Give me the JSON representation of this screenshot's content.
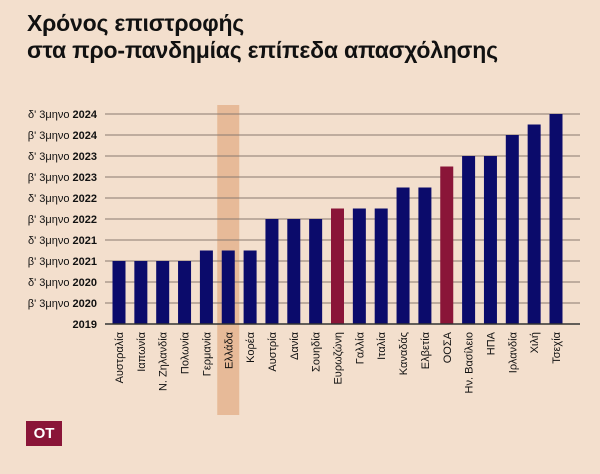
{
  "header": {
    "title_line1": "Χρόνος επιστροφής",
    "title_line2": "στα προ-πανδημίας επίπεδα απασχόλησης"
  },
  "logo": {
    "text": "OT"
  },
  "colors": {
    "bar": "#0b0b6b",
    "highlight_bar": "#8a1538",
    "highlight_band": "#e4b48e",
    "background": "#f3dfcd",
    "grid": "#8a7a70"
  },
  "chart_data": {
    "type": "bar",
    "title": "Χρόνος επιστροφής στα προ-πανδημίας επίπεδα απασχόλησης",
    "xlabel": "",
    "ylabel": "",
    "y_ticks": [
      {
        "prefix": "",
        "year": "2019"
      },
      {
        "prefix": "β' 3μηνο ",
        "year": "2020"
      },
      {
        "prefix": "δ' 3μηνο ",
        "year": "2020"
      },
      {
        "prefix": "β' 3μηνο ",
        "year": "2021"
      },
      {
        "prefix": "δ' 3μηνο ",
        "year": "2021"
      },
      {
        "prefix": "β' 3μηνο ",
        "year": "2022"
      },
      {
        "prefix": "δ' 3μηνο ",
        "year": "2022"
      },
      {
        "prefix": "β' 3μηνο ",
        "year": "2023"
      },
      {
        "prefix": "δ' 3μηνο ",
        "year": "2023"
      },
      {
        "prefix": "β' 3μηνο ",
        "year": "2024"
      },
      {
        "prefix": "δ' 3μηνο ",
        "year": "2024"
      }
    ],
    "ylim": [
      0,
      10
    ],
    "grid": true,
    "categories": [
      "Αυστραλία",
      "Ιαπωνία",
      "Ν. Ζηλανδία",
      "Πολωνία",
      "Γερμανία",
      "Ελλάδα",
      "Κορέα",
      "Αυστρία",
      "Δανία",
      "Σουηδία",
      "Ευρωζώνη",
      "Γαλλία",
      "Ιταλία",
      "Καναδάς",
      "Ελβετία",
      "ΟΟΣΑ",
      "Ην. Βασίλειο",
      "ΗΠΑ",
      "Ιρλανδία",
      "Χιλή",
      "Τσεχία"
    ],
    "values": [
      3,
      3,
      3,
      3,
      3.5,
      3.5,
      3.5,
      5,
      5,
      5,
      5.5,
      5.5,
      5.5,
      6.5,
      6.5,
      7.5,
      8,
      8,
      9,
      9.5,
      10
    ],
    "highlighted_bars": [
      "Ευρωζώνη",
      "ΟΟΣΑ"
    ],
    "highlighted_category": "Ελλάδα"
  }
}
